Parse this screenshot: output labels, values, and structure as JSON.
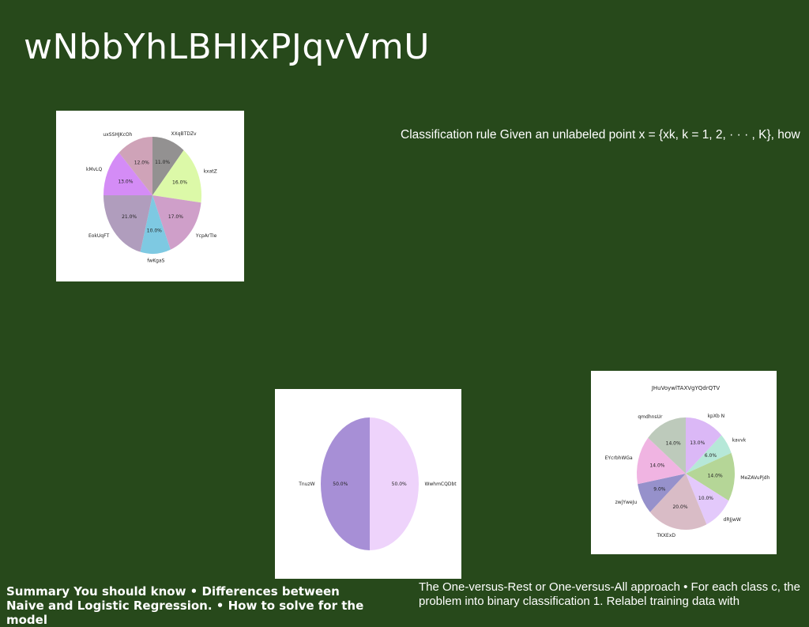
{
  "slide": {
    "title": "wNbbYhLBHIxPJqvVmU",
    "text_right": "Classification rule Given an unlabeled point x = {xk, k = 1, 2, · · · , K}, how",
    "text_bottom_left": "Summary You should know • Differences between Naive and Logistic Regression. • How to solve for the model",
    "text_bottom_right": "The One-versus-Rest or One-versus-All approach • For each class c, the problem into binary classification 1. Relabel training data with"
  },
  "chart_data": [
    {
      "type": "pie",
      "title": "",
      "slices": [
        {
          "label": "XXqBTDZv",
          "value": 11.0,
          "color": "#939191"
        },
        {
          "label": "kxatZ",
          "value": 16.0,
          "color": "#dcf9a8"
        },
        {
          "label": "YcpArTIe",
          "value": 17.0,
          "color": "#cf9fc9"
        },
        {
          "label": "fwKgaS",
          "value": 10.0,
          "color": "#7ec9e2"
        },
        {
          "label": "EokUqFT",
          "value": 21.0,
          "color": "#b09dbd"
        },
        {
          "label": "kMvLQ",
          "value": 13.0,
          "color": "#d48cf6"
        },
        {
          "label": "uxSSHJKcOh",
          "value": 12.0,
          "color": "#cfa3b8"
        }
      ],
      "start_angle": 90,
      "direction": "clockwise"
    },
    {
      "type": "pie",
      "title": "",
      "slices": [
        {
          "label": "WwhmCQDbt",
          "value": 50.0,
          "color": "#eed3fb"
        },
        {
          "label": "TnuzW",
          "value": 50.0,
          "color": "#a78fd6"
        }
      ],
      "start_angle": 90,
      "direction": "clockwise"
    },
    {
      "type": "pie",
      "title": "JHuVoywlTAXVgYQdrQTV",
      "slices": [
        {
          "label": "kpXb N",
          "value": 13.0,
          "color": "#dbb8f6"
        },
        {
          "label": "kavvk",
          "value": 6.0,
          "color": "#b6e8d8"
        },
        {
          "label": "MeZAVuPjdh",
          "value": 14.0,
          "color": "#b5d697"
        },
        {
          "label": "dRJjwW",
          "value": 10.0,
          "color": "#e3c9fb"
        },
        {
          "label": "TKXExD",
          "value": 20.0,
          "color": "#d9bcc6"
        },
        {
          "label": "zwjYweJu",
          "value": 9.0,
          "color": "#9691cb"
        },
        {
          "label": "EYcrbhWGa",
          "value": 14.0,
          "color": "#f0b4e2"
        },
        {
          "label": "qmdhnsUr",
          "value": 14.0,
          "color": "#bdcabb"
        }
      ],
      "start_angle": 90,
      "direction": "clockwise"
    }
  ]
}
